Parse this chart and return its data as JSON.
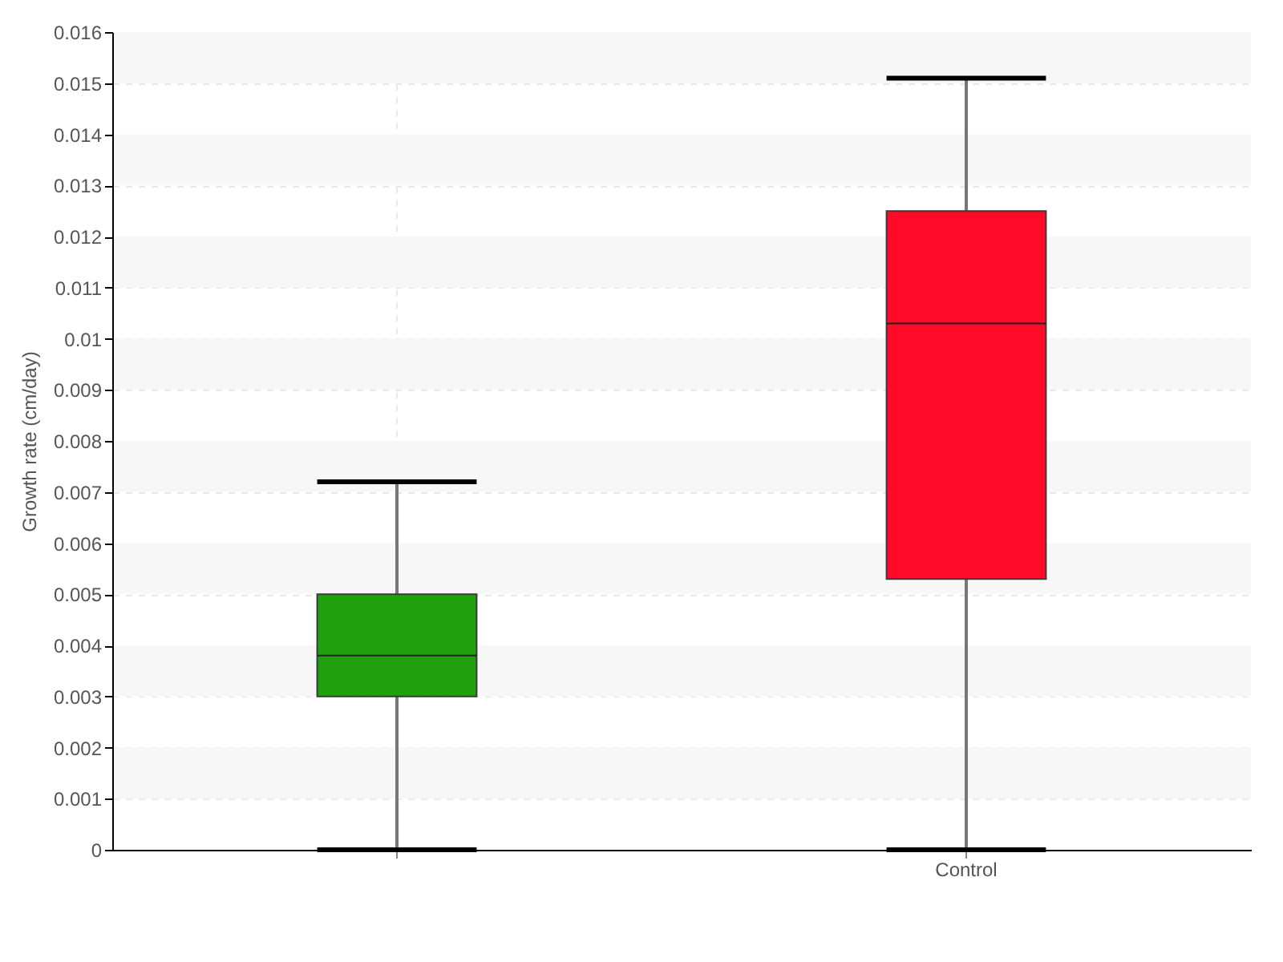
{
  "chart_data": {
    "type": "box",
    "ylabel": "Growth rate (cm/day)",
    "categories": [
      null,
      "Control"
    ],
    "boxes": [
      {
        "low": 0,
        "q1": 0.003,
        "median": 0.0038,
        "q3": 0.005,
        "high": 0.0072
      },
      {
        "low": 0,
        "q1": 0.0053,
        "median": 0.0103,
        "q3": 0.0125,
        "high": 0.0151
      }
    ],
    "colors": [
      "#22a10f",
      "#ff0a28"
    ],
    "ylim": [
      0,
      0.016
    ],
    "yticks": [
      0,
      0.001,
      0.002,
      0.003,
      0.004,
      0.005,
      0.006,
      0.007,
      0.008,
      0.009,
      0.01,
      0.011,
      0.012,
      0.013,
      0.014,
      0.015,
      0.016
    ],
    "grid": true
  }
}
